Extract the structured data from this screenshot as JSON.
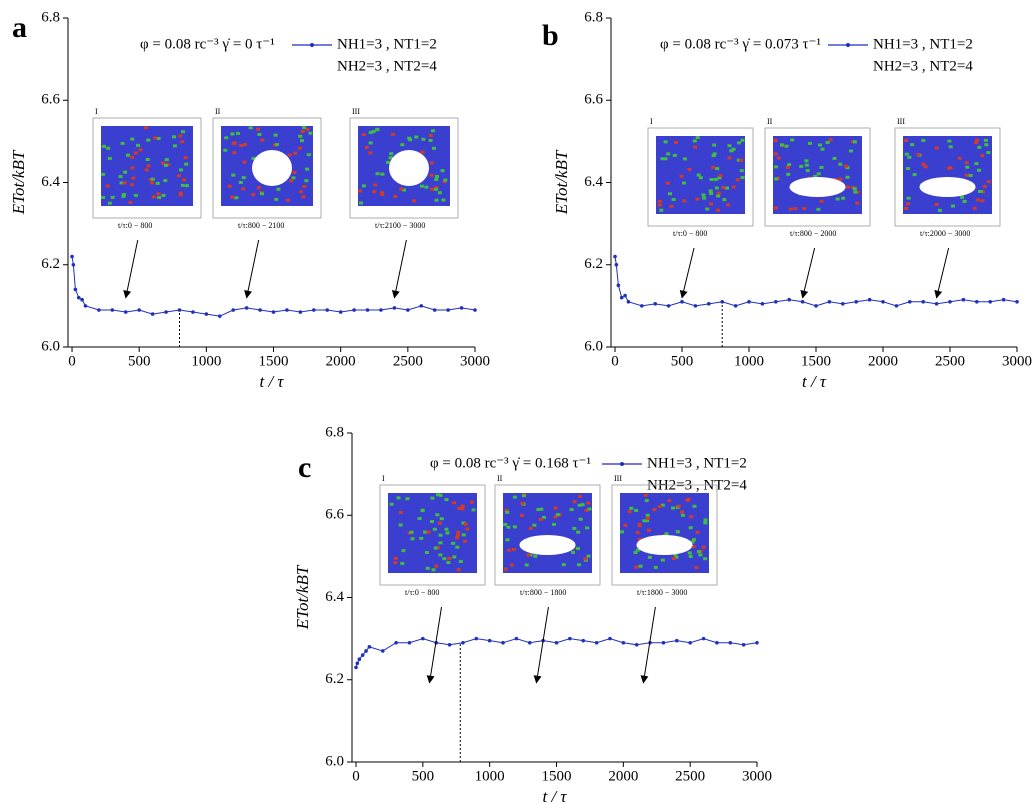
{
  "chart_data": [
    {
      "type": "line",
      "panel_label": "a",
      "xlabel": "t / τ",
      "ylabel": "ETot/kBT",
      "params": "φ = 0.08 rc⁻³    γ̇ = 0 τ⁻¹",
      "legend_note": "NH2=3 , NT2=4",
      "x": [
        0,
        10,
        25,
        50,
        75,
        100,
        200,
        300,
        400,
        500,
        600,
        700,
        800,
        900,
        1000,
        1100,
        1200,
        1300,
        1400,
        1500,
        1600,
        1700,
        1800,
        1900,
        2000,
        2100,
        2200,
        2300,
        2400,
        2500,
        2600,
        2700,
        2800,
        2900,
        3000
      ],
      "series": [
        {
          "name": "NH1=3 , NT1=2",
          "color": "#1f2fbf",
          "values": [
            6.22,
            6.2,
            6.14,
            6.12,
            6.115,
            6.1,
            6.09,
            6.09,
            6.085,
            6.09,
            6.08,
            6.085,
            6.09,
            6.085,
            6.08,
            6.075,
            6.09,
            6.095,
            6.09,
            6.085,
            6.09,
            6.085,
            6.09,
            6.09,
            6.085,
            6.09,
            6.09,
            6.09,
            6.095,
            6.09,
            6.1,
            6.09,
            6.09,
            6.095,
            6.09
          ]
        }
      ],
      "marker_x": 800,
      "insets": [
        {
          "label": "I",
          "caption": "t/τ:0 − 800"
        },
        {
          "label": "II",
          "caption": "t/τ:800 − 2100"
        },
        {
          "label": "III",
          "caption": "t/τ:2100 − 3000"
        }
      ],
      "xlim": [
        -30,
        3000
      ],
      "xticks": [
        0,
        500,
        1000,
        1500,
        2000,
        2500,
        3000
      ],
      "ylim": [
        6.0,
        6.8
      ],
      "yticks": [
        {
          "value": 6.0,
          "label": "6.0"
        },
        6.2,
        6.4,
        6.6,
        6.8
      ]
    },
    {
      "type": "line",
      "panel_label": "b",
      "xlabel": "t / τ",
      "ylabel": "ETot/kBT",
      "params": "φ = 0.08 rc⁻³    γ̇ = 0.073 τ⁻¹",
      "legend_note": "NH2=3 , NT2=4",
      "x": [
        0,
        10,
        25,
        50,
        75,
        100,
        200,
        300,
        400,
        500,
        600,
        700,
        800,
        900,
        1000,
        1100,
        1200,
        1300,
        1400,
        1500,
        1600,
        1700,
        1800,
        1900,
        2000,
        2100,
        2200,
        2300,
        2400,
        2500,
        2600,
        2700,
        2800,
        2900,
        3000
      ],
      "series": [
        {
          "name": "NH1=3 , NT1=2",
          "color": "#1f2fbf",
          "values": [
            6.22,
            6.2,
            6.15,
            6.12,
            6.125,
            6.11,
            6.1,
            6.105,
            6.1,
            6.11,
            6.1,
            6.105,
            6.11,
            6.1,
            6.11,
            6.105,
            6.11,
            6.115,
            6.11,
            6.1,
            6.11,
            6.105,
            6.11,
            6.115,
            6.11,
            6.1,
            6.11,
            6.11,
            6.105,
            6.11,
            6.115,
            6.11,
            6.11,
            6.115,
            6.11
          ]
        }
      ],
      "marker_x": 800,
      "insets": [
        {
          "label": "I",
          "caption": "t/τ:0 − 800"
        },
        {
          "label": "II",
          "caption": "t/τ:800 − 2000"
        },
        {
          "label": "III",
          "caption": "t/τ:2000 − 3000"
        }
      ],
      "xlim": [
        -30,
        3000
      ],
      "xticks": [
        0,
        500,
        1000,
        1500,
        2000,
        2500,
        3000
      ],
      "ylim": [
        6.0,
        6.8
      ],
      "yticks": [
        {
          "value": 6.0,
          "label": "6.0"
        },
        6.2,
        6.4,
        6.6,
        6.8
      ]
    },
    {
      "type": "line",
      "panel_label": "c",
      "xlabel": "t / τ",
      "ylabel": "ETot/kBT",
      "params": "φ = 0.08 rc⁻³    γ̇ = 0.168 τ⁻¹",
      "legend_note": "NH2=3 , NT2=4",
      "x": [
        0,
        10,
        25,
        50,
        75,
        100,
        200,
        300,
        400,
        500,
        600,
        700,
        800,
        900,
        1000,
        1100,
        1200,
        1300,
        1400,
        1500,
        1600,
        1700,
        1800,
        1900,
        2000,
        2100,
        2200,
        2300,
        2400,
        2500,
        2600,
        2700,
        2800,
        2900,
        3000
      ],
      "series": [
        {
          "name": "NH1=3 , NT1=2",
          "color": "#1f2fbf",
          "values": [
            6.23,
            6.24,
            6.25,
            6.26,
            6.27,
            6.28,
            6.27,
            6.29,
            6.29,
            6.3,
            6.29,
            6.285,
            6.29,
            6.3,
            6.295,
            6.29,
            6.3,
            6.29,
            6.295,
            6.29,
            6.3,
            6.295,
            6.29,
            6.3,
            6.29,
            6.285,
            6.29,
            6.29,
            6.295,
            6.29,
            6.3,
            6.29,
            6.29,
            6.285,
            6.29
          ]
        }
      ],
      "marker_x": 780,
      "insets": [
        {
          "label": "I",
          "caption": "t/τ:0 − 800"
        },
        {
          "label": "II",
          "caption": "t/τ:800 − 1800"
        },
        {
          "label": "III",
          "caption": "t/τ:1800 − 3000"
        }
      ],
      "xlim": [
        -30,
        3000
      ],
      "xticks": [
        0,
        500,
        1000,
        1500,
        2000,
        2500,
        3000
      ],
      "ylim": [
        6.0,
        6.8
      ],
      "yticks": [
        {
          "value": 6.0,
          "label": "6.0"
        },
        6.2,
        6.4,
        6.6,
        6.8
      ]
    }
  ]
}
